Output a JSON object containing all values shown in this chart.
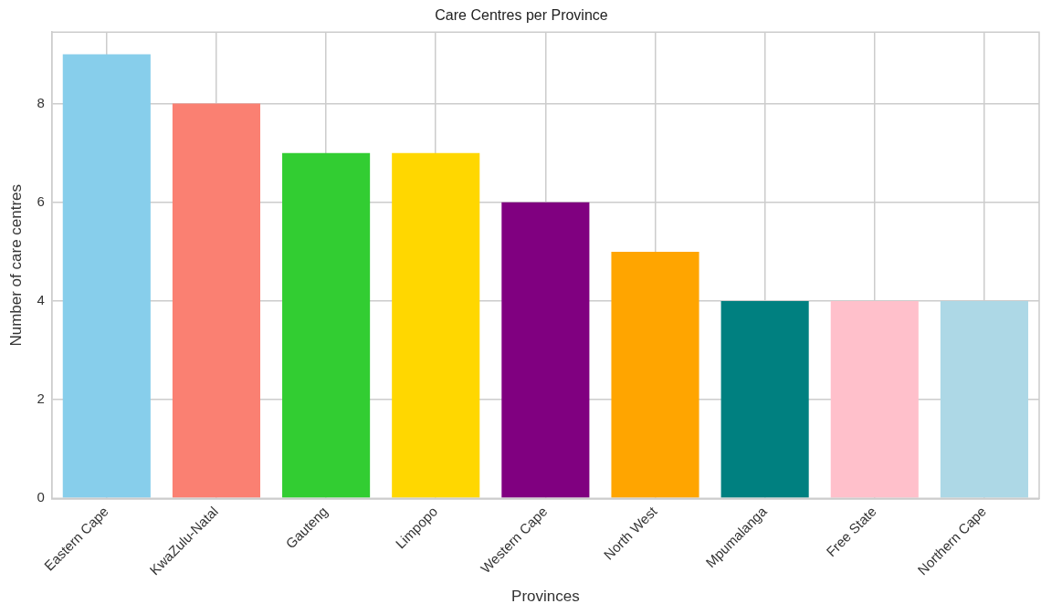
{
  "chart_data": {
    "type": "bar",
    "title": "Care Centres per Province",
    "xlabel": "Provinces",
    "ylabel": "Number of care centres",
    "categories": [
      "Eastern Cape",
      "KwaZulu-Natal",
      "Gauteng",
      "Limpopo",
      "Western Cape",
      "North West",
      "Mpumalanga",
      "Free State",
      "Northern Cape"
    ],
    "values": [
      9,
      8,
      7,
      7,
      6,
      5,
      4,
      4,
      4
    ],
    "colors": [
      "#87ceeb",
      "#fa8072",
      "#32cd32",
      "#ffd700",
      "#800080",
      "#ffa500",
      "#008080",
      "#ffc0cb",
      "#add8e6"
    ],
    "ylim": [
      0,
      9.45
    ],
    "yticks": [
      0,
      2,
      4,
      6,
      8
    ],
    "grid": true,
    "legend": false
  }
}
